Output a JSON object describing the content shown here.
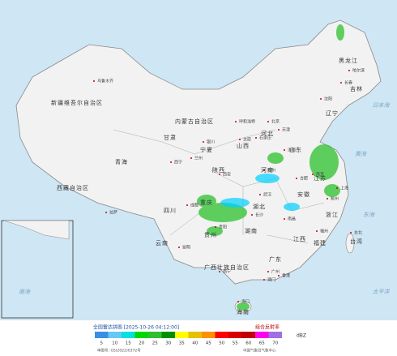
{
  "map": {
    "provinces": [
      "新疆维吾尔自治区",
      "西藏自治区",
      "青海",
      "甘肃",
      "内蒙古自治区",
      "黑龙江",
      "吉林",
      "辽宁",
      "河北",
      "山西",
      "陕西",
      "宁夏",
      "四川",
      "重庆",
      "湖北",
      "湖南",
      "贵州",
      "云南",
      "广西壮族自治区",
      "广东",
      "福建",
      "江西",
      "浙江",
      "江苏",
      "安徽",
      "河南",
      "山东",
      "台湾",
      "海南"
    ],
    "cities": [
      "乌鲁木齐",
      "拉萨",
      "西宁",
      "兰州",
      "银川",
      "呼和浩特",
      "哈尔滨",
      "长春",
      "沈阳",
      "北京",
      "天津",
      "太原",
      "石家庄",
      "济南",
      "郑州",
      "西安",
      "成都",
      "武汉",
      "长沙",
      "贵阳",
      "昆明",
      "南宁",
      "广州",
      "福州",
      "南昌",
      "杭州",
      "上海",
      "合肥",
      "南京",
      "台北",
      "海口",
      "香港",
      "澳门"
    ],
    "seas": [
      "日本海",
      "黄海",
      "东海",
      "太平洋",
      "南海"
    ]
  },
  "legend": {
    "title": "全国雷达拼图 [2025-10-26 04:12:00]",
    "product": "组合反射率",
    "unit": "dBZ",
    "levels": [
      5,
      10,
      15,
      20,
      25,
      30,
      35,
      40,
      45,
      50,
      55,
      60,
      65,
      70
    ],
    "colors": [
      "#3a8ee6",
      "#66c8f5",
      "#00e0e0",
      "#00d800",
      "#2fbf2f",
      "#018f00",
      "#ffff00",
      "#e7c000",
      "#ff9000",
      "#ff0000",
      "#d60000",
      "#c00000",
      "#ff00f0",
      "#a070e0"
    ]
  },
  "footer": {
    "approval": "审图号: GS(2022)0372号",
    "source": "中国气象局气象中心"
  }
}
